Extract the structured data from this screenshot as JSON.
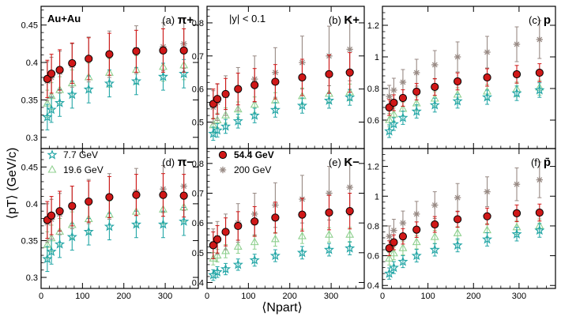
{
  "figure": {
    "y_title": "⟨pT⟩ (GeV/c)",
    "x_title": "⟨Npart⟩",
    "annotation_system": "Au+Au",
    "annotation_rapidity": "|y| < 0.1"
  },
  "legend": {
    "left": [
      {
        "name": "7.7 GeV"
      },
      {
        "name": "19.6 GeV"
      }
    ],
    "right": [
      {
        "name": "54.4 GeV"
      },
      {
        "name": "200 GeV"
      }
    ]
  },
  "styles": {
    "7.7 GeV": {
      "color": "#23a6a6",
      "marker": "star"
    },
    "19.6 GeV": {
      "color": "#8fd08f",
      "marker": "triangle"
    },
    "54.4 GeV": {
      "color": "#d01818",
      "marker": "circle"
    },
    "200 GeV": {
      "color": "#988a84",
      "marker": "asterisk"
    }
  },
  "chart_data": [
    {
      "type": "scatter",
      "panel": "(a)",
      "particle": "π+",
      "x": [
        15,
        25,
        45,
        75,
        115,
        165,
        230,
        295,
        345
      ],
      "xlim": [
        0,
        380
      ],
      "ylim": [
        0.285,
        0.475
      ],
      "yticks": [
        0.3,
        0.35,
        0.4,
        0.45
      ],
      "xticks": [
        0,
        100,
        200,
        300
      ],
      "series": [
        {
          "name": "7.7 GeV",
          "values": [
            0.327,
            0.337,
            0.346,
            0.357,
            0.364,
            0.372,
            0.375,
            0.381,
            0.385
          ],
          "err": [
            0.017,
            0.017,
            0.018,
            0.018,
            0.018,
            0.018,
            0.018,
            0.018,
            0.019
          ]
        },
        {
          "name": "19.6 GeV",
          "values": [
            0.345,
            0.355,
            0.363,
            0.372,
            0.38,
            0.386,
            0.39,
            0.394,
            0.396
          ],
          "err": [
            0.018,
            0.018,
            0.018,
            0.018,
            0.019,
            0.019,
            0.019,
            0.019,
            0.019
          ]
        },
        {
          "name": "54.4 GeV",
          "values": [
            0.378,
            0.385,
            0.39,
            0.399,
            0.405,
            0.411,
            0.415,
            0.416,
            0.416
          ],
          "err": [
            0.025,
            0.026,
            0.027,
            0.027,
            0.028,
            0.028,
            0.028,
            0.029,
            0.029
          ]
        },
        {
          "name": "200 GeV",
          "values": [
            0.375,
            0.38,
            0.387,
            0.396,
            0.404,
            0.411,
            0.417,
            0.421,
            0.425
          ],
          "err": [
            0.026,
            0.027,
            0.028,
            0.029,
            0.03,
            0.031,
            0.032,
            0.032,
            0.033
          ]
        }
      ]
    },
    {
      "type": "scatter",
      "panel": "(b)",
      "particle": "K+",
      "x": [
        15,
        25,
        45,
        75,
        115,
        165,
        230,
        295,
        345
      ],
      "xlim": [
        0,
        380
      ],
      "ylim": [
        0.42,
        0.85
      ],
      "yticks": [
        0.5,
        0.6,
        0.7,
        0.8
      ],
      "xticks": [
        0,
        100,
        200,
        300
      ],
      "series": [
        {
          "name": "7.7 GeV",
          "values": [
            0.465,
            0.475,
            0.487,
            0.503,
            0.52,
            0.537,
            0.55,
            0.565,
            0.575
          ],
          "err": [
            0.02,
            0.02,
            0.021,
            0.021,
            0.022,
            0.022,
            0.023,
            0.023,
            0.024
          ]
        },
        {
          "name": "19.6 GeV",
          "values": [
            0.49,
            0.505,
            0.52,
            0.538,
            0.552,
            0.565,
            0.578,
            0.585,
            0.59
          ],
          "err": [
            0.022,
            0.022,
            0.023,
            0.023,
            0.024,
            0.024,
            0.025,
            0.025,
            0.025
          ]
        },
        {
          "name": "54.4 GeV",
          "values": [
            0.555,
            0.57,
            0.585,
            0.6,
            0.612,
            0.622,
            0.635,
            0.645,
            0.65
          ],
          "err": [
            0.045,
            0.046,
            0.047,
            0.048,
            0.05,
            0.052,
            0.055,
            0.058,
            0.06
          ]
        },
        {
          "name": "200 GeV",
          "values": [
            0.545,
            0.56,
            0.58,
            0.6,
            0.63,
            0.65,
            0.68,
            0.7,
            0.72
          ],
          "err": [
            0.05,
            0.055,
            0.06,
            0.065,
            0.07,
            0.075,
            0.08,
            0.09,
            0.095
          ]
        }
      ]
    },
    {
      "type": "scatter",
      "panel": "(c)",
      "particle": "p",
      "x": [
        15,
        25,
        45,
        75,
        115,
        165,
        230,
        295,
        345
      ],
      "xlim": [
        0,
        380
      ],
      "ylim": [
        0.42,
        1.32
      ],
      "yticks": [
        0.6,
        0.8,
        1.0,
        1.2
      ],
      "xticks": [
        0,
        100,
        200,
        300
      ],
      "series": [
        {
          "name": "7.7 GeV",
          "values": [
            0.53,
            0.575,
            0.615,
            0.655,
            0.695,
            0.72,
            0.745,
            0.77,
            0.79
          ],
          "err": [
            0.04,
            0.04,
            0.042,
            0.042,
            0.044,
            0.044,
            0.045,
            0.046,
            0.046
          ]
        },
        {
          "name": "19.6 GeV",
          "values": [
            0.6,
            0.635,
            0.67,
            0.705,
            0.735,
            0.76,
            0.78,
            0.795,
            0.805
          ],
          "err": [
            0.042,
            0.042,
            0.044,
            0.044,
            0.045,
            0.045,
            0.046,
            0.046,
            0.047
          ]
        },
        {
          "name": "54.4 GeV",
          "values": [
            0.68,
            0.71,
            0.74,
            0.78,
            0.81,
            0.845,
            0.87,
            0.89,
            0.9
          ],
          "err": [
            0.05,
            0.05,
            0.052,
            0.052,
            0.053,
            0.054,
            0.055,
            0.056,
            0.057
          ]
        },
        {
          "name": "200 GeV",
          "values": [
            0.75,
            0.79,
            0.84,
            0.9,
            0.95,
            1.0,
            1.03,
            1.08,
            1.11
          ],
          "err": [
            0.07,
            0.075,
            0.08,
            0.085,
            0.09,
            0.095,
            0.1,
            0.11,
            0.12
          ]
        }
      ]
    },
    {
      "type": "scatter",
      "panel": "(d)",
      "particle": "π−",
      "x": [
        15,
        25,
        45,
        75,
        115,
        165,
        230,
        295,
        345
      ],
      "xlim": [
        0,
        380
      ],
      "ylim": [
        0.285,
        0.475
      ],
      "yticks": [
        0.3,
        0.35,
        0.4,
        0.45
      ],
      "xticks": [
        0,
        100,
        200,
        300
      ],
      "series": [
        {
          "name": "7.7 GeV",
          "values": [
            0.325,
            0.335,
            0.345,
            0.355,
            0.362,
            0.369,
            0.372,
            0.372,
            0.376
          ],
          "err": [
            0.017,
            0.017,
            0.018,
            0.018,
            0.018,
            0.018,
            0.018,
            0.018,
            0.019
          ]
        },
        {
          "name": "19.6 GeV",
          "values": [
            0.344,
            0.353,
            0.362,
            0.371,
            0.379,
            0.385,
            0.389,
            0.392,
            0.395
          ],
          "err": [
            0.018,
            0.018,
            0.018,
            0.018,
            0.019,
            0.019,
            0.019,
            0.019,
            0.019
          ]
        },
        {
          "name": "54.4 GeV",
          "values": [
            0.378,
            0.384,
            0.39,
            0.397,
            0.403,
            0.409,
            0.412,
            0.412,
            0.411
          ],
          "err": [
            0.025,
            0.026,
            0.027,
            0.027,
            0.028,
            0.028,
            0.028,
            0.029,
            0.029
          ]
        },
        {
          "name": "200 GeV",
          "values": [
            0.374,
            0.379,
            0.386,
            0.395,
            0.403,
            0.41,
            0.416,
            0.42,
            0.424
          ],
          "err": [
            0.026,
            0.027,
            0.028,
            0.029,
            0.03,
            0.031,
            0.032,
            0.032,
            0.033
          ]
        }
      ]
    },
    {
      "type": "scatter",
      "panel": "(e)",
      "particle": "K−",
      "x": [
        15,
        25,
        45,
        75,
        115,
        165,
        230,
        295,
        345
      ],
      "xlim": [
        0,
        380
      ],
      "ylim": [
        0.38,
        0.85
      ],
      "yticks": [
        0.4,
        0.5,
        0.6,
        0.7,
        0.8
      ],
      "xticks": [
        0,
        100,
        200,
        300
      ],
      "series": [
        {
          "name": "7.7 GeV",
          "values": [
            0.425,
            0.435,
            0.445,
            0.46,
            0.475,
            0.49,
            0.5,
            0.51,
            0.515
          ],
          "err": [
            0.018,
            0.018,
            0.019,
            0.019,
            0.02,
            0.02,
            0.021,
            0.021,
            0.022
          ]
        },
        {
          "name": "19.6 GeV",
          "values": [
            0.48,
            0.49,
            0.505,
            0.52,
            0.535,
            0.545,
            0.555,
            0.56,
            0.56
          ],
          "err": [
            0.021,
            0.021,
            0.022,
            0.022,
            0.023,
            0.023,
            0.024,
            0.024,
            0.025
          ]
        },
        {
          "name": "54.4 GeV",
          "values": [
            0.525,
            0.545,
            0.57,
            0.59,
            0.605,
            0.618,
            0.628,
            0.635,
            0.64
          ],
          "err": [
            0.045,
            0.046,
            0.047,
            0.048,
            0.05,
            0.052,
            0.055,
            0.058,
            0.06
          ]
        },
        {
          "name": "200 GeV",
          "values": [
            0.53,
            0.55,
            0.57,
            0.6,
            0.63,
            0.66,
            0.68,
            0.7,
            0.72
          ],
          "err": [
            0.05,
            0.055,
            0.06,
            0.065,
            0.07,
            0.075,
            0.08,
            0.09,
            0.095
          ]
        }
      ]
    },
    {
      "type": "scatter",
      "panel": "(f)",
      "particle": "p̄",
      "x": [
        15,
        25,
        45,
        75,
        115,
        165,
        230,
        295,
        345
      ],
      "xlim": [
        0,
        380
      ],
      "ylim": [
        0.38,
        1.32
      ],
      "yticks": [
        0.4,
        0.6,
        0.8,
        1.0,
        1.2
      ],
      "xticks": [
        0,
        100,
        200,
        300
      ],
      "series": [
        {
          "name": "7.7 GeV",
          "values": [
            0.48,
            0.52,
            0.56,
            0.6,
            0.64,
            0.67,
            0.71,
            0.745,
            0.77
          ],
          "err": [
            0.038,
            0.04,
            0.04,
            0.042,
            0.042,
            0.044,
            0.045,
            0.046,
            0.046
          ]
        },
        {
          "name": "19.6 GeV",
          "values": [
            0.58,
            0.615,
            0.65,
            0.69,
            0.725,
            0.75,
            0.77,
            0.79,
            0.8
          ],
          "err": [
            0.042,
            0.042,
            0.044,
            0.044,
            0.045,
            0.045,
            0.046,
            0.046,
            0.047
          ]
        },
        {
          "name": "54.4 GeV",
          "values": [
            0.65,
            0.69,
            0.73,
            0.775,
            0.81,
            0.845,
            0.865,
            0.885,
            0.89
          ],
          "err": [
            0.05,
            0.05,
            0.052,
            0.052,
            0.053,
            0.054,
            0.055,
            0.056,
            0.057
          ]
        },
        {
          "name": "200 GeV",
          "values": [
            0.73,
            0.77,
            0.82,
            0.88,
            0.94,
            0.99,
            1.03,
            1.08,
            1.11
          ],
          "err": [
            0.07,
            0.075,
            0.08,
            0.085,
            0.09,
            0.095,
            0.1,
            0.11,
            0.12
          ]
        }
      ]
    }
  ]
}
